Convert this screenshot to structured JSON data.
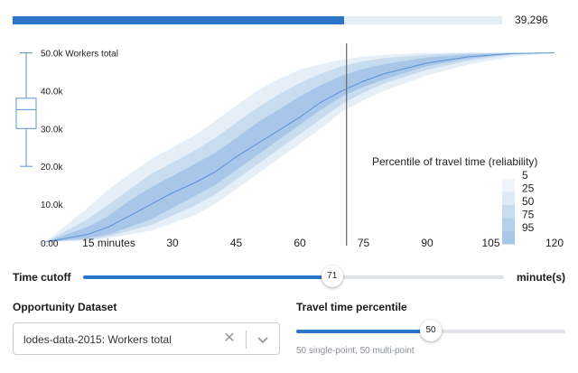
{
  "top_progress": {
    "value_label": "39,296",
    "fraction": 0.677
  },
  "chart_data": {
    "type": "area",
    "x_ticks": [
      {
        "value": 0,
        "label": "0.00"
      },
      {
        "value": 15,
        "label": "15 minutes"
      },
      {
        "value": 30,
        "label": "30"
      },
      {
        "value": 45,
        "label": "45"
      },
      {
        "value": 60,
        "label": "60"
      },
      {
        "value": 75,
        "label": "75"
      },
      {
        "value": 90,
        "label": "90"
      },
      {
        "value": 105,
        "label": "105"
      },
      {
        "value": 120,
        "label": "120"
      }
    ],
    "y_ticks": [
      {
        "value": 10000,
        "label": "10.0k"
      },
      {
        "value": 20000,
        "label": "20.0k"
      },
      {
        "value": 30000,
        "label": "30.0k"
      },
      {
        "value": 40000,
        "label": "40.0k"
      },
      {
        "value": 50000,
        "label": "50.0k Workers total"
      }
    ],
    "xlim": [
      0,
      120
    ],
    "ylim": [
      0,
      52500
    ],
    "x": [
      0,
      10,
      15,
      20,
      25,
      30,
      35,
      40,
      45,
      50,
      55,
      60,
      65,
      70,
      75,
      80,
      90,
      100,
      110,
      120
    ],
    "bands": [
      {
        "lower": [
          0,
          400,
          1000,
          2000,
          3000,
          5000,
          7000,
          10000,
          14000,
          18000,
          22000,
          26000,
          30000,
          34500,
          37500,
          40000,
          44000,
          47000,
          49000,
          50000
        ],
        "upper": [
          0,
          9000,
          14000,
          18000,
          22000,
          25000,
          28000,
          32000,
          36000,
          40000,
          43000,
          45500,
          47000,
          48200,
          49000,
          49500,
          50000,
          50000,
          50000,
          50000
        ]
      },
      {
        "lower": [
          0,
          600,
          1500,
          3000,
          4500,
          7000,
          9500,
          12500,
          16500,
          20500,
          24500,
          28500,
          32500,
          36500,
          39500,
          42000,
          45500,
          48000,
          49500,
          50000
        ],
        "upper": [
          0,
          6000,
          10000,
          14000,
          18000,
          21000,
          24000,
          27500,
          31500,
          35500,
          39000,
          42000,
          44500,
          46500,
          47800,
          48600,
          49500,
          50000,
          50000,
          50000
        ]
      },
      {
        "lower": [
          0,
          1000,
          2000,
          4000,
          6000,
          9000,
          12000,
          15000,
          19000,
          23000,
          27000,
          31000,
          35000,
          38500,
          41000,
          43000,
          46500,
          48500,
          49700,
          50000
        ],
        "upper": [
          0,
          4000,
          7000,
          11000,
          14500,
          17500,
          20500,
          23500,
          27500,
          31500,
          35000,
          38500,
          41500,
          44000,
          45800,
          47000,
          48800,
          49600,
          50000,
          50000
        ]
      }
    ],
    "median_line": [
      0,
      2000,
      4000,
      7000,
      10000,
      13000,
      15500,
      18500,
      22500,
      26000,
      29500,
      33000,
      37000,
      40000,
      42500,
      44500,
      47300,
      49000,
      49800,
      50000
    ],
    "legend": {
      "title": "Percentile of travel time (reliability)",
      "entries": [
        "5",
        "25",
        "50",
        "75",
        "95"
      ],
      "placement": "right"
    },
    "cutoff_marker": 71,
    "box_plot": {
      "min": 20000,
      "q1": 30000,
      "median": 35000,
      "q3": 38000,
      "max": 50000
    },
    "colors": {
      "band_outer": "#e6eff8",
      "band_mid": "#c8dcf0",
      "band_inner": "#a7c6e8",
      "median": "#5a93d6",
      "cutoff": "#666666"
    }
  },
  "time_cutoff": {
    "label": "Time cutoff",
    "value": 71,
    "value_label": "71",
    "min": 0,
    "max": 120,
    "unit_label": "minute(s)"
  },
  "opportunity": {
    "label": "Opportunity Dataset",
    "selected": "lodes-data-2015: Workers total"
  },
  "percentile": {
    "label": "Travel time percentile",
    "value": 50,
    "value_label": "50",
    "min": 1,
    "max": 99,
    "hint": "50 single-point, 50 multi-point"
  }
}
